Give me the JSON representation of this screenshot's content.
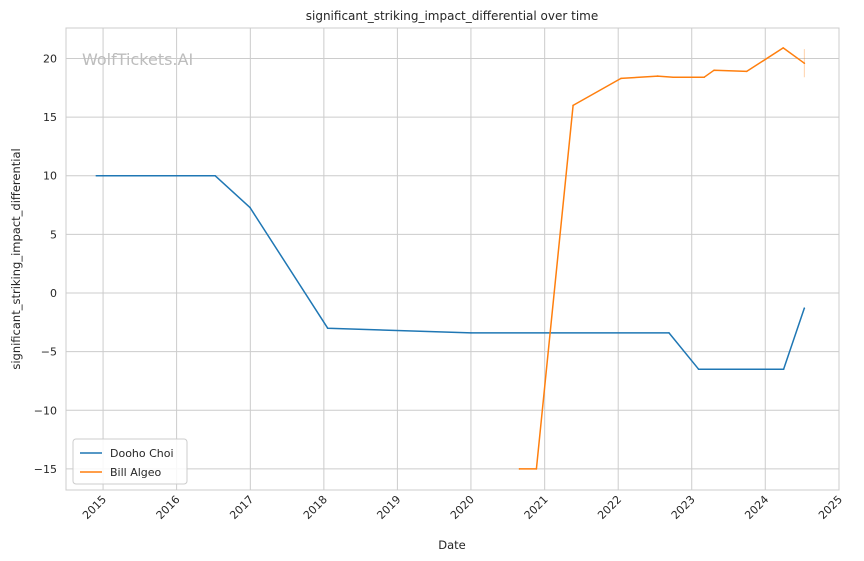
{
  "chart_data": {
    "type": "line",
    "title": "significant_striking_impact_differential over time",
    "xlabel": "Date",
    "ylabel": "significant_striking_impact_differential",
    "watermark": "WolfTickets.AI",
    "x_ticks": [
      "2015",
      "2016",
      "2017",
      "2018",
      "2019",
      "2020",
      "2021",
      "2022",
      "2023",
      "2024",
      "2025"
    ],
    "y_ticks": [
      -15,
      -10,
      -5,
      0,
      5,
      10,
      15,
      20
    ],
    "y_tick_labels": [
      "−15",
      "−10",
      "−5",
      "0",
      "5",
      "10",
      "15",
      "20"
    ],
    "xlim": [
      "2014-07-01",
      "2025-01-01"
    ],
    "ylim": [
      -16.8,
      22.6
    ],
    "grid": true,
    "legend_position": "lower-left",
    "series": [
      {
        "name": "Dooho Choi",
        "color": "#1f77b4",
        "points": [
          {
            "x": "2014-11-29",
            "y": 10
          },
          {
            "x": "2016-07-10",
            "y": 10
          },
          {
            "x": "2016-12-30",
            "y": 7.3
          },
          {
            "x": "2018-01-20",
            "y": -3.0
          },
          {
            "x": "2020-01-01",
            "y": -3.4
          },
          {
            "x": "2022-09-10",
            "y": -3.4
          },
          {
            "x": "2023-02-04",
            "y": -6.5
          },
          {
            "x": "2024-04-01",
            "y": -6.5
          },
          {
            "x": "2024-07-13",
            "y": -1.3
          }
        ]
      },
      {
        "name": "Bill Algeo",
        "color": "#ff7f0e",
        "points": [
          {
            "x": "2020-08-29",
            "y": -15
          },
          {
            "x": "2020-11-21",
            "y": -15
          },
          {
            "x": "2021-05-22",
            "y": 16
          },
          {
            "x": "2022-01-15",
            "y": 18.3
          },
          {
            "x": "2022-07-16",
            "y": 18.5
          },
          {
            "x": "2022-10-01",
            "y": 18.4
          },
          {
            "x": "2023-03-04",
            "y": 18.4
          },
          {
            "x": "2023-04-22",
            "y": 19.0
          },
          {
            "x": "2023-10-01",
            "y": 18.9
          },
          {
            "x": "2024-03-30",
            "y": 20.9
          },
          {
            "x": "2024-07-13",
            "y": 19.6
          }
        ],
        "error_bar": {
          "x": "2024-07-13",
          "low": 18.4,
          "high": 20.8
        }
      }
    ]
  }
}
